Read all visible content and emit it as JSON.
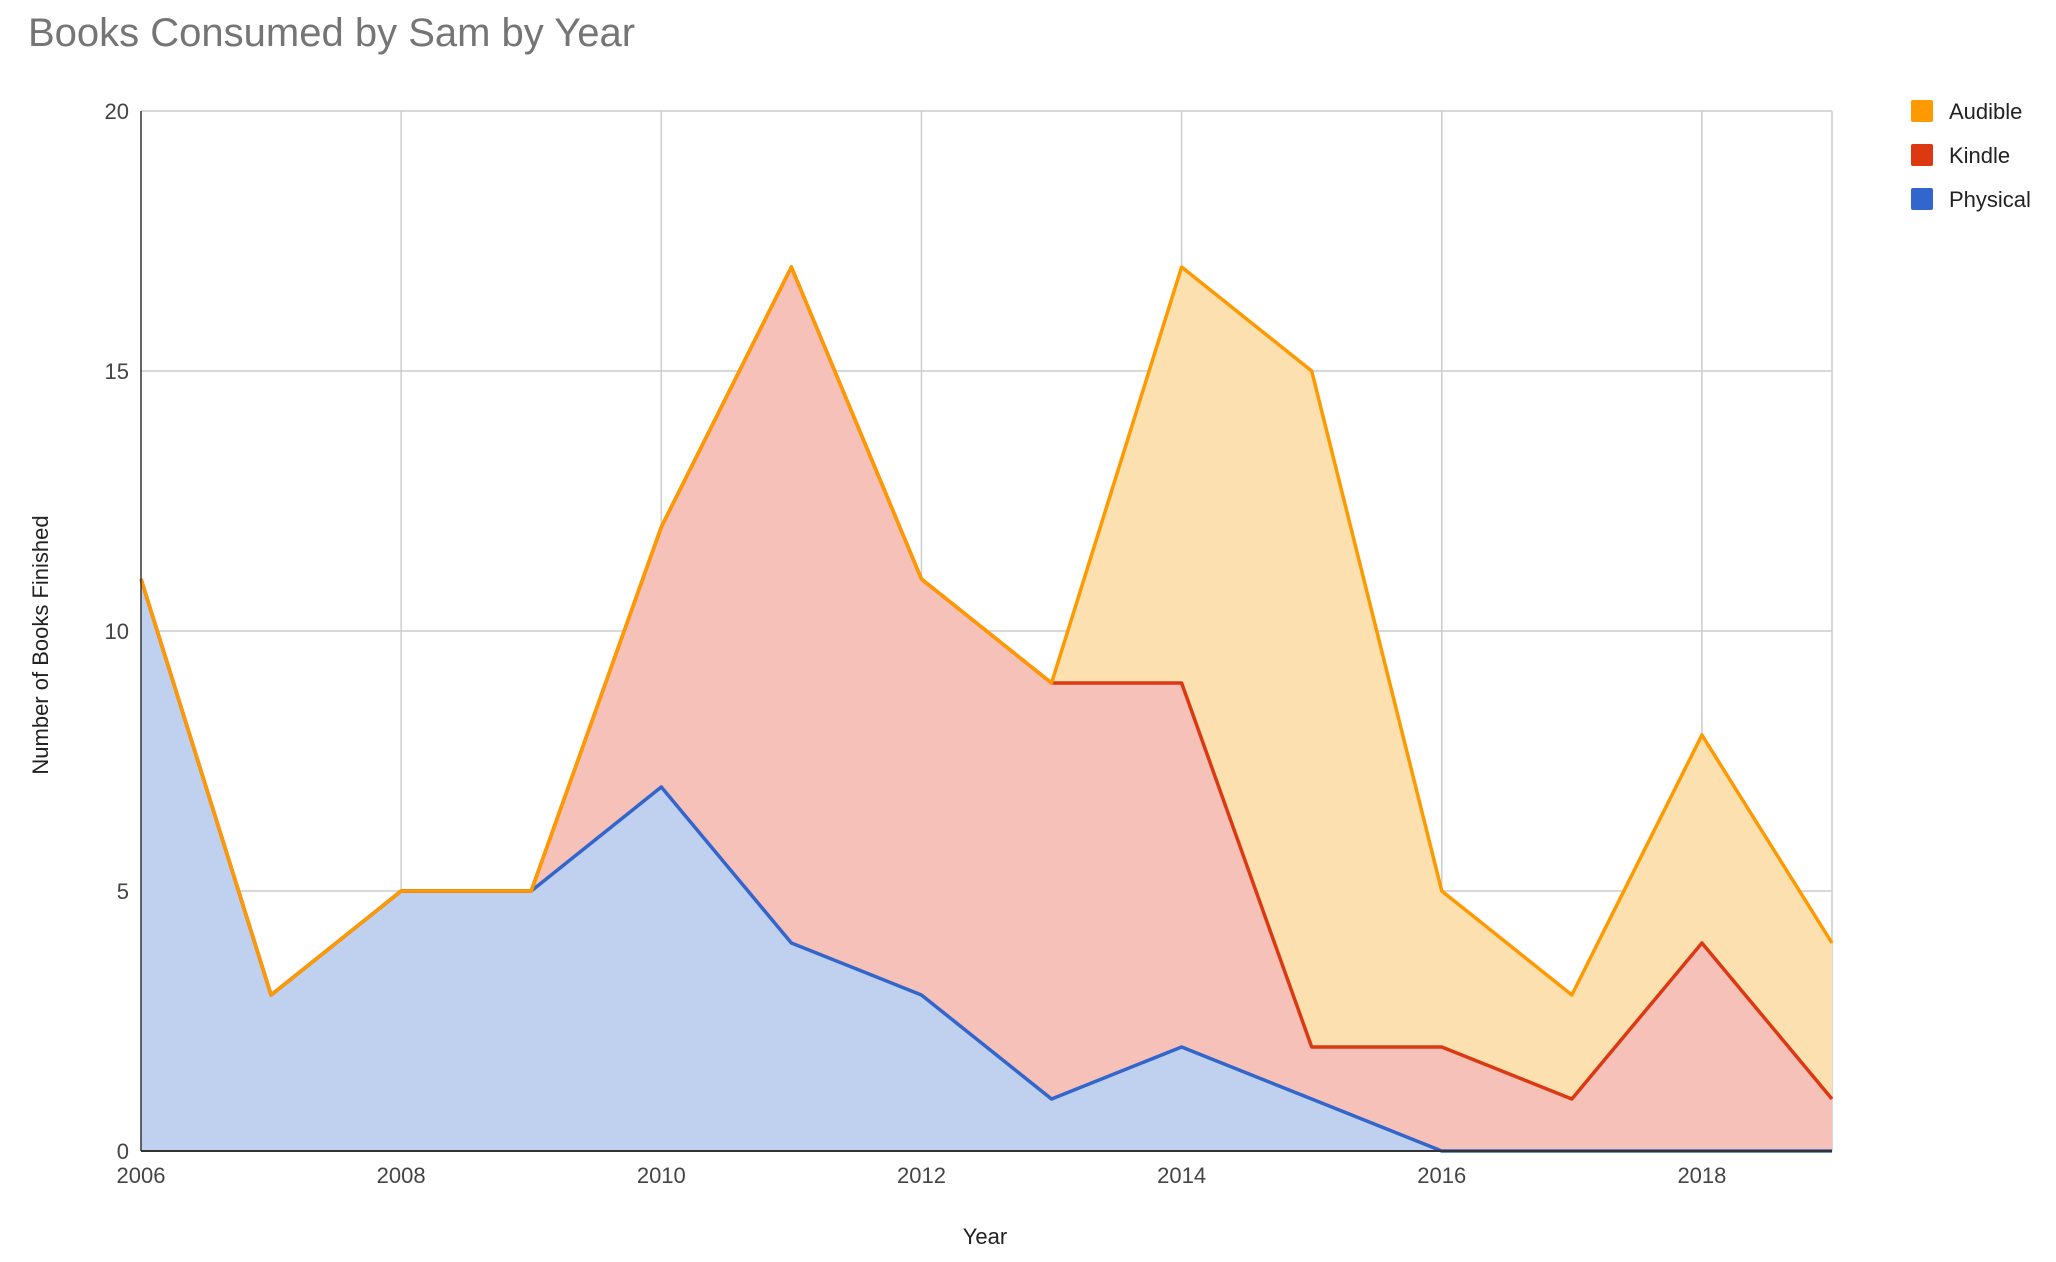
{
  "chart_data": {
    "type": "area",
    "stacked": true,
    "title": "Books Consumed by Sam by Year",
    "xlabel": "Year",
    "ylabel": "Number of Books Finished",
    "x": [
      2006,
      2007,
      2008,
      2009,
      2010,
      2011,
      2012,
      2013,
      2014,
      2015,
      2016,
      2017,
      2018,
      2019
    ],
    "x_ticks": [
      "2006",
      "2008",
      "2010",
      "2012",
      "2014",
      "2016",
      "2018"
    ],
    "y_ticks": [
      "0",
      "5",
      "10",
      "15",
      "20"
    ],
    "xlim": [
      2006,
      2019
    ],
    "ylim": [
      0,
      20
    ],
    "grid": true,
    "legend_position": "right",
    "series": [
      {
        "name": "Physical",
        "color": "#3366cc",
        "fill": "#c0d0ef",
        "values": [
          11,
          3,
          5,
          5,
          7,
          4,
          3,
          1,
          2,
          1,
          0,
          0,
          0,
          0
        ]
      },
      {
        "name": "Kindle",
        "color": "#dc3912",
        "fill": "#f5c1b8",
        "values": [
          0,
          0,
          0,
          0,
          5,
          13,
          8,
          8,
          7,
          1,
          2,
          1,
          4,
          1
        ]
      },
      {
        "name": "Audible",
        "color": "#ff9900",
        "fill": "#fde0b0",
        "values": [
          0,
          0,
          0,
          0,
          0,
          0,
          0,
          0,
          8,
          13,
          3,
          2,
          4,
          3
        ]
      }
    ],
    "legend_order": [
      "Audible",
      "Kindle",
      "Physical"
    ]
  }
}
